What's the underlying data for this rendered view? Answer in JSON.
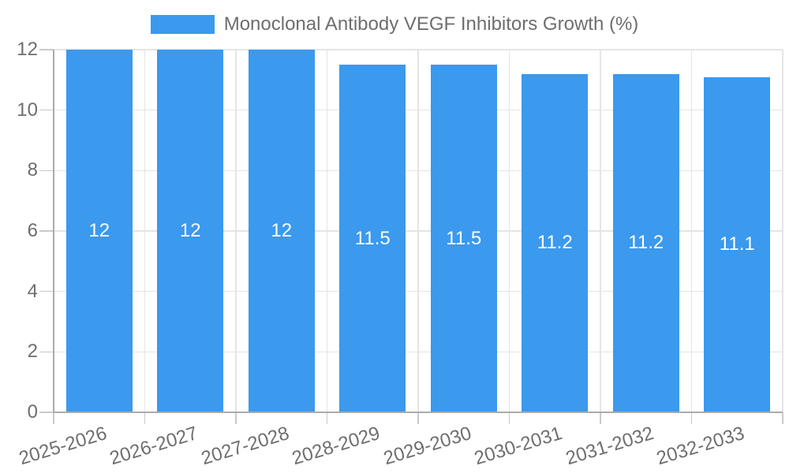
{
  "legend": {
    "label": "Monoclonal Antibody VEGF Inhibitors Growth (%)"
  },
  "chart_data": {
    "type": "bar",
    "title": "",
    "categories": [
      "2025-2026",
      "2026-2027",
      "2027-2028",
      "2028-2029",
      "2029-2030",
      "2030-2031",
      "2031-2032",
      "2032-2033"
    ],
    "series": [
      {
        "name": "Monoclonal Antibody VEGF Inhibitors Growth (%)",
        "color": "#3b99ee",
        "values": [
          12,
          12,
          12,
          11.5,
          11.5,
          11.2,
          11.2,
          11.1
        ]
      }
    ],
    "value_labels": [
      "12",
      "12",
      "12",
      "11.5",
      "11.5",
      "11.2",
      "11.2",
      "11.1"
    ],
    "xlabel": "",
    "ylabel": "",
    "ylim": [
      0,
      12
    ],
    "y_ticks": [
      0,
      2,
      4,
      6,
      8,
      10,
      12
    ],
    "grid": true,
    "legend_position": "top",
    "x_tick_rotation_deg": -17,
    "colors": {
      "bar": "#3b99ee",
      "grid_line": "#e5e5e5",
      "axis_line": "#ababab",
      "tick_mark": "#c9c9c9",
      "tick_text": "#6e6e6e",
      "bar_label_text": "#ffffff",
      "background": "#ffffff"
    }
  }
}
